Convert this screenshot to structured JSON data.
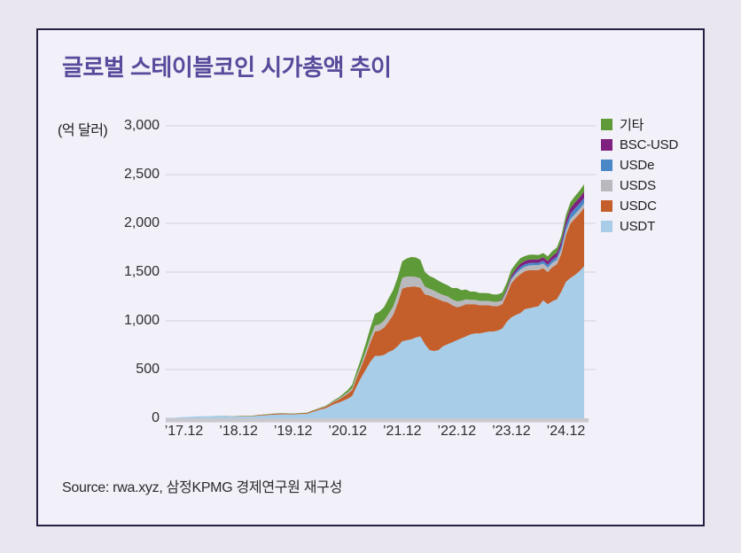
{
  "title": "글로벌 스테이블코인 시가총액 추이",
  "source": "Source: rwa.xyz, 삼정KPMG 경제연구원 재구성",
  "colors": {
    "page_background": "#e9e6f0",
    "card_background": "#f2f0f8",
    "card_border": "#262144",
    "title_text": "#574a9c",
    "gridline": "#d8d5e0",
    "baseline": "#c9c8ce",
    "axis_text": "#2e2e30"
  },
  "chart_data": {
    "type": "area",
    "stacked": true,
    "title": "글로벌 스테이블코인 시가총액 추이",
    "ylabel_unit": "(억 달러)",
    "ylim": [
      0,
      3000
    ],
    "y_ticks": [
      "3,000",
      "2,500",
      "2,000",
      "1,500",
      "1,000",
      "500",
      "0"
    ],
    "x_interval": "monthly",
    "x_range": [
      "2017-08",
      "2025-04"
    ],
    "x_tick_labels": [
      "’17.12",
      "’18.12",
      "’19.12",
      "’20.12",
      "’21.12",
      "’22.12",
      "’23.12",
      "’24.12"
    ],
    "x_tick_month_indices": [
      4,
      16,
      28,
      40,
      52,
      64,
      76,
      88
    ],
    "legend_position": "right",
    "legend_order_top_to_bottom": [
      "기타",
      "BSC-USD",
      "USDe",
      "USDS",
      "USDC",
      "USDT"
    ],
    "series": [
      {
        "name": "USDT",
        "color": "#a7cde8",
        "values": [
          4,
          5,
          6,
          10,
          13,
          15,
          17,
          20,
          21,
          22,
          22,
          23,
          24,
          26,
          20,
          18,
          18,
          19,
          20,
          20,
          25,
          28,
          31,
          35,
          38,
          40,
          41,
          41,
          40,
          42,
          44,
          44,
          60,
          75,
          90,
          100,
          120,
          145,
          160,
          180,
          200,
          230,
          330,
          420,
          500,
          580,
          640,
          640,
          650,
          680,
          700,
          740,
          790,
          800,
          810,
          830,
          840,
          760,
          700,
          690,
          700,
          740,
          760,
          780,
          800,
          820,
          840,
          860,
          870,
          870,
          880,
          890,
          890,
          900,
          920,
          990,
          1035,
          1060,
          1080,
          1120,
          1130,
          1140,
          1150,
          1210,
          1170,
          1200,
          1220,
          1300,
          1400,
          1440,
          1470,
          1510,
          1560
        ]
      },
      {
        "name": "USDC",
        "color": "#c45f2b",
        "values": [
          0,
          0,
          0,
          0,
          0,
          0,
          0,
          0,
          0,
          0,
          0,
          0,
          0,
          0,
          2,
          3,
          4,
          4,
          4,
          5,
          6,
          7,
          7,
          8,
          9,
          9,
          8,
          7,
          7,
          7,
          8,
          9,
          10,
          11,
          12,
          15,
          20,
          25,
          30,
          40,
          50,
          60,
          85,
          110,
          150,
          200,
          250,
          260,
          280,
          310,
          360,
          440,
          540,
          545,
          540,
          520,
          500,
          510,
          560,
          550,
          520,
          460,
          430,
          380,
          340,
          330,
          330,
          310,
          300,
          290,
          280,
          270,
          260,
          250,
          250,
          280,
          350,
          380,
          400,
          390,
          390,
          380,
          370,
          330,
          330,
          350,
          360,
          390,
          480,
          560,
          580,
          590,
          600
        ]
      },
      {
        "name": "USDS",
        "color": "#b9b9bd",
        "values": [
          0,
          0,
          0,
          0,
          0,
          0,
          0,
          0,
          0,
          0,
          0,
          0,
          0,
          0,
          0,
          0,
          0,
          0,
          0,
          0,
          0,
          0,
          0,
          0,
          0,
          0,
          0,
          0,
          0,
          0,
          0,
          0,
          0,
          1,
          2,
          3,
          5,
          8,
          10,
          12,
          15,
          20,
          25,
          30,
          40,
          50,
          60,
          65,
          70,
          80,
          85,
          95,
          110,
          110,
          105,
          100,
          95,
          80,
          70,
          70,
          65,
          65,
          60,
          60,
          60,
          55,
          50,
          45,
          45,
          45,
          45,
          45,
          45,
          45,
          40,
          40,
          40,
          42,
          45,
          45,
          48,
          50,
          50,
          48,
          45,
          45,
          45,
          45,
          45,
          45,
          45,
          45,
          45
        ]
      },
      {
        "name": "USDe",
        "color": "#4a87c7",
        "values": [
          0,
          0,
          0,
          0,
          0,
          0,
          0,
          0,
          0,
          0,
          0,
          0,
          0,
          0,
          0,
          0,
          0,
          0,
          0,
          0,
          0,
          0,
          0,
          0,
          0,
          0,
          0,
          0,
          0,
          0,
          0,
          0,
          0,
          0,
          0,
          0,
          0,
          0,
          0,
          0,
          0,
          0,
          0,
          0,
          0,
          0,
          0,
          0,
          0,
          0,
          0,
          0,
          0,
          0,
          0,
          0,
          0,
          0,
          0,
          0,
          0,
          0,
          0,
          0,
          0,
          0,
          0,
          0,
          0,
          0,
          0,
          0,
          0,
          0,
          0,
          0,
          15,
          20,
          28,
          25,
          25,
          25,
          25,
          28,
          30,
          30,
          32,
          38,
          50,
          55,
          60,
          58,
          55
        ]
      },
      {
        "name": "BSC-USD",
        "color": "#7f1f80",
        "values": [
          0,
          0,
          0,
          0,
          0,
          0,
          0,
          0,
          0,
          0,
          0,
          0,
          0,
          0,
          0,
          0,
          0,
          0,
          0,
          0,
          0,
          0,
          0,
          0,
          0,
          0,
          0,
          0,
          0,
          0,
          0,
          0,
          0,
          0,
          0,
          0,
          0,
          0,
          0,
          0,
          0,
          0,
          0,
          0,
          0,
          0,
          0,
          0,
          0,
          0,
          0,
          0,
          0,
          0,
          0,
          0,
          0,
          0,
          0,
          0,
          0,
          0,
          0,
          0,
          0,
          0,
          0,
          0,
          0,
          0,
          0,
          0,
          0,
          0,
          10,
          18,
          25,
          30,
          35,
          35,
          35,
          35,
          35,
          35,
          38,
          40,
          42,
          45,
          55,
          58,
          60,
          62,
          65
        ]
      },
      {
        "name": "기타",
        "color": "#5f9a39",
        "values": [
          0,
          0,
          0,
          0,
          0,
          0,
          0,
          0,
          0,
          0,
          0,
          1,
          1,
          1,
          1,
          1,
          2,
          2,
          2,
          2,
          2,
          2,
          3,
          3,
          3,
          3,
          3,
          3,
          3,
          3,
          4,
          4,
          5,
          5,
          6,
          7,
          8,
          10,
          12,
          18,
          25,
          35,
          45,
          60,
          80,
          100,
          120,
          130,
          140,
          160,
          170,
          170,
          170,
          185,
          200,
          200,
          190,
          150,
          130,
          130,
          125,
          120,
          115,
          115,
          137,
          110,
          100,
          85,
          85,
          80,
          80,
          78,
          75,
          75,
          70,
          65,
          60,
          55,
          55,
          50,
          50,
          48,
          45,
          45,
          48,
          50,
          52,
          55,
          55,
          60,
          65,
          70,
          75
        ]
      }
    ]
  }
}
